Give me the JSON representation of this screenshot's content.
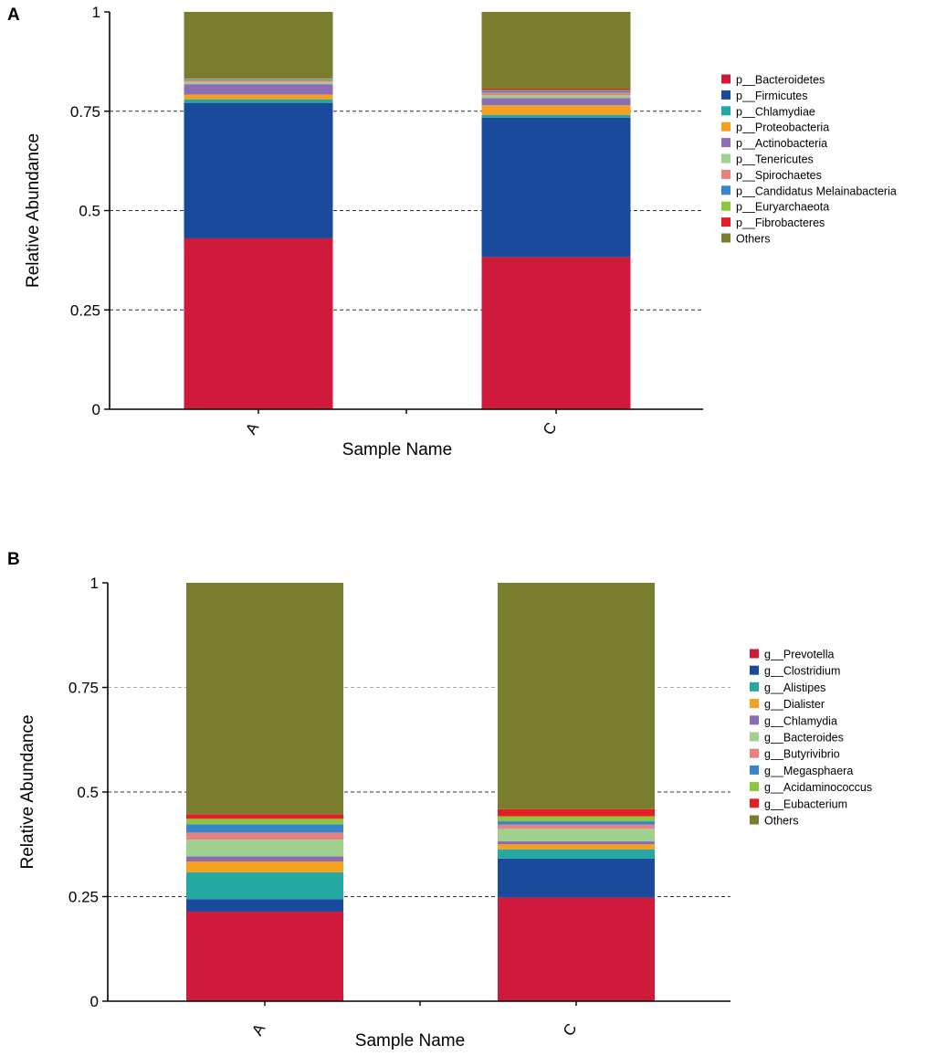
{
  "panels": [
    {
      "letter": "A",
      "chart_data": {
        "type": "bar",
        "stacked": true,
        "categories": [
          "A",
          "C"
        ],
        "xlabel": "Sample Name",
        "ylabel": "Relative Abundance",
        "ylim": [
          0,
          1
        ],
        "yticks": [
          0,
          0.25,
          0.5,
          0.75,
          1
        ],
        "ytick_labels": [
          "0",
          "0.25",
          "0.5",
          "0.75",
          "1"
        ],
        "series": [
          {
            "name": "p__Bacteroidetes",
            "color": "#cf1a3c",
            "values": [
              0.43,
              0.383
            ]
          },
          {
            "name": "p__Firmicutes",
            "color": "#1a4a9c",
            "values": [
              0.341,
              0.351
            ]
          },
          {
            "name": "p__Chlamydiae",
            "color": "#25a8a2",
            "values": [
              0.009,
              0.007
            ]
          },
          {
            "name": "p__Proteobacteria",
            "color": "#f5a01e",
            "values": [
              0.012,
              0.024
            ]
          },
          {
            "name": "p__Actinobacteria",
            "color": "#8b6db5",
            "values": [
              0.026,
              0.018
            ]
          },
          {
            "name": "p__Tenericutes",
            "color": "#9fd08e",
            "values": [
              0.006,
              0.007
            ]
          },
          {
            "name": "p__Spirochaetes",
            "color": "#e88181",
            "values": [
              0.004,
              0.007
            ]
          },
          {
            "name": "p__Candidatus Melainabacteria",
            "color": "#3a84c9",
            "values": [
              0.002,
              0.004
            ]
          },
          {
            "name": "p__Euryarchaeota",
            "color": "#8cc63f",
            "values": [
              0.002,
              0.002
            ]
          },
          {
            "name": "p__Fibrobacteres",
            "color": "#e31e25",
            "values": [
              0.001,
              0.004
            ]
          },
          {
            "name": "Others",
            "color": "#7b7d2e",
            "values": [
              0.167,
              0.193
            ]
          }
        ]
      }
    },
    {
      "letter": "B",
      "chart_data": {
        "type": "bar",
        "stacked": true,
        "categories": [
          "A",
          "C"
        ],
        "xlabel": "Sample Name",
        "ylabel": "Relative Abundance",
        "ylim": [
          0,
          1
        ],
        "yticks": [
          0,
          0.25,
          0.5,
          0.75,
          1
        ],
        "ytick_labels": [
          "0",
          "0.25",
          "0.5",
          "0.75",
          "1"
        ],
        "series": [
          {
            "name": "g__Prevotella",
            "color": "#cf1a3c",
            "values": [
              0.214,
              0.248
            ]
          },
          {
            "name": "g__Clostridium",
            "color": "#1a4a9c",
            "values": [
              0.03,
              0.093
            ]
          },
          {
            "name": "g__Alistipes",
            "color": "#25a8a2",
            "values": [
              0.064,
              0.022
            ]
          },
          {
            "name": "g__Dialister",
            "color": "#f5a01e",
            "values": [
              0.026,
              0.012
            ]
          },
          {
            "name": "g__Chlamydia",
            "color": "#8b6db5",
            "values": [
              0.012,
              0.007
            ]
          },
          {
            "name": "g__Bacteroides",
            "color": "#9fd08e",
            "values": [
              0.04,
              0.03
            ]
          },
          {
            "name": "g__Butyrivibrio",
            "color": "#e88181",
            "values": [
              0.017,
              0.01
            ]
          },
          {
            "name": "g__Megasphaera",
            "color": "#3a84c9",
            "values": [
              0.02,
              0.008
            ]
          },
          {
            "name": "g__Acidaminococcus",
            "color": "#8cc63f",
            "values": [
              0.013,
              0.012
            ]
          },
          {
            "name": "g__Eubacterium",
            "color": "#e31e25",
            "values": [
              0.011,
              0.017
            ]
          },
          {
            "name": "Others",
            "color": "#7b7d2e",
            "values": [
              0.553,
              0.541
            ]
          }
        ]
      }
    }
  ]
}
